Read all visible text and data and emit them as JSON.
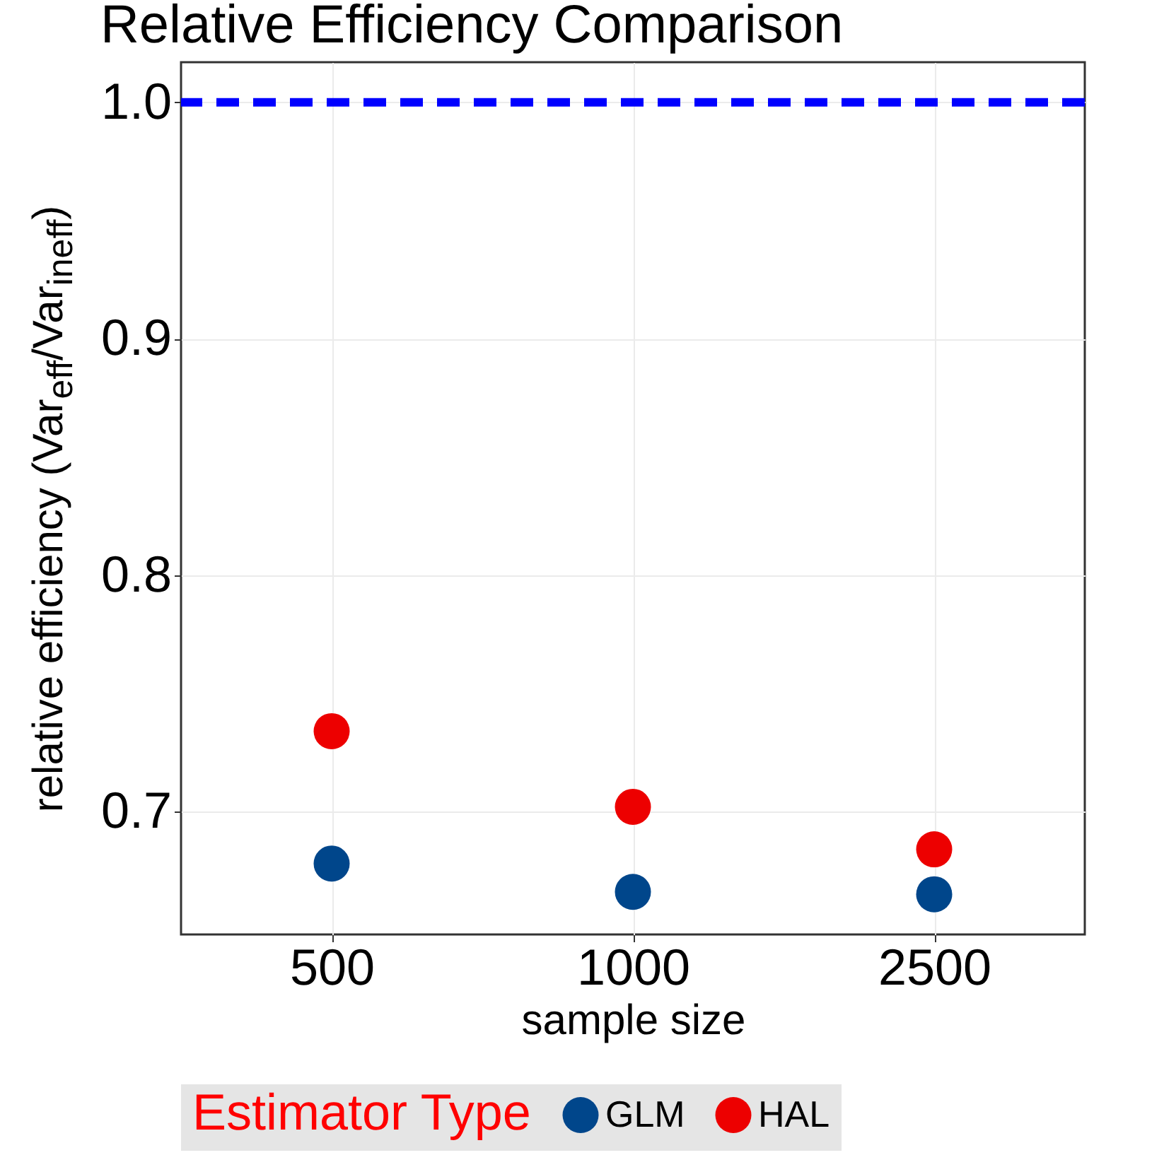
{
  "chart_data": {
    "type": "scatter",
    "title": "Relative Efficiency Comparison",
    "xlabel": "sample size",
    "ylabel": "relative efficiency (Var$_{eff}$/Var$_{ineff}$)",
    "legend_title": "Estimator Type",
    "categories": [
      "500",
      "1000",
      "2500"
    ],
    "series": [
      {
        "name": "GLM",
        "color": "#00468b",
        "values": [
          0.678,
          0.666,
          0.665
        ]
      },
      {
        "name": "HAL",
        "color": "#ed0000",
        "values": [
          0.734,
          0.702,
          0.684
        ]
      }
    ],
    "ylim": [
      0.648,
      1.017
    ],
    "yticks": [
      0.7,
      0.8,
      0.9,
      {
        "value": 1.0,
        "label": "1.0"
      }
    ],
    "ref_lines": [
      {
        "axis": "y",
        "value": 1.0,
        "color": "#0000ff",
        "line_style": "dashed"
      }
    ],
    "grid": true,
    "legend": "bottom",
    "marker": "circle"
  }
}
